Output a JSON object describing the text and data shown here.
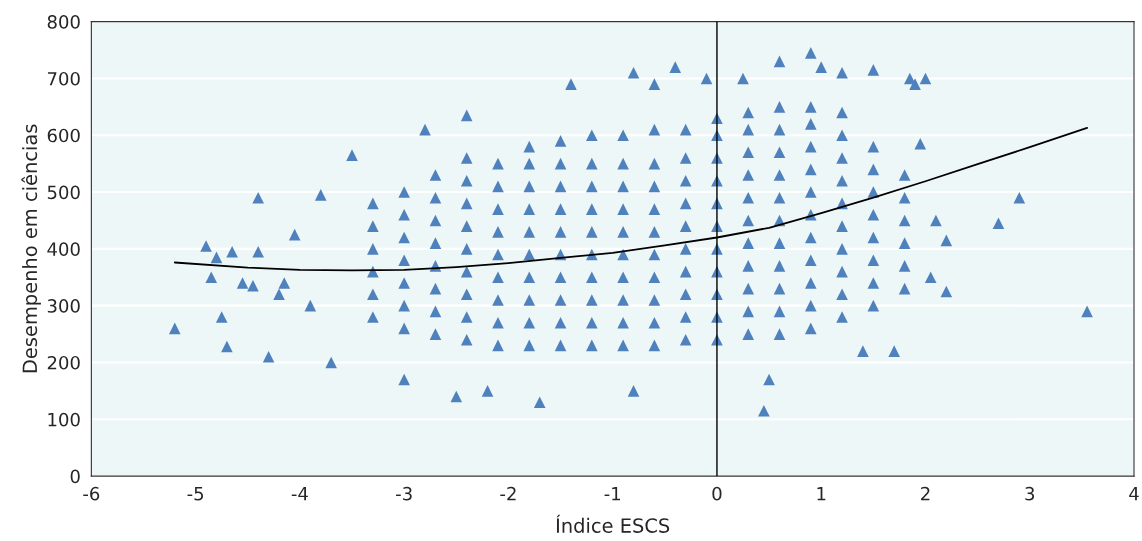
{
  "chart_data": {
    "type": "scatter",
    "xlabel": "Índice ESCS",
    "ylabel": "Desempenho em ciências",
    "xlim": [
      -6,
      4
    ],
    "xticks": [
      -6,
      -5,
      -4,
      -3,
      -2,
      -1,
      0,
      1,
      2,
      3,
      4
    ],
    "ylim": [
      0,
      800
    ],
    "yticks": [
      0,
      100,
      200,
      300,
      400,
      500,
      600,
      700,
      800
    ],
    "grid": "y",
    "marker": "triangle",
    "ref_lines": [
      {
        "axis": "x",
        "value": 0,
        "color": "#000000",
        "line_style": "solid"
      }
    ],
    "series": [
      {
        "color": "#4f81bd",
        "x": [
          -3.3,
          -3.3,
          -3.3,
          -3.3,
          -3.3,
          -3.3,
          -3.0,
          -3.0,
          -3.0,
          -3.0,
          -3.0,
          -3.0,
          -3.0,
          -2.7,
          -2.7,
          -2.7,
          -2.7,
          -2.7,
          -2.7,
          -2.7,
          -2.7,
          -2.4,
          -2.4,
          -2.4,
          -2.4,
          -2.4,
          -2.4,
          -2.4,
          -2.4,
          -2.4,
          -2.1,
          -2.1,
          -2.1,
          -2.1,
          -2.1,
          -2.1,
          -2.1,
          -2.1,
          -2.1,
          -1.8,
          -1.8,
          -1.8,
          -1.8,
          -1.8,
          -1.8,
          -1.8,
          -1.8,
          -1.8,
          -1.8,
          -1.5,
          -1.5,
          -1.5,
          -1.5,
          -1.5,
          -1.5,
          -1.5,
          -1.5,
          -1.5,
          -1.5,
          -1.2,
          -1.2,
          -1.2,
          -1.2,
          -1.2,
          -1.2,
          -1.2,
          -1.2,
          -1.2,
          -1.2,
          -0.9,
          -0.9,
          -0.9,
          -0.9,
          -0.9,
          -0.9,
          -0.9,
          -0.9,
          -0.9,
          -0.9,
          -0.6,
          -0.6,
          -0.6,
          -0.6,
          -0.6,
          -0.6,
          -0.6,
          -0.6,
          -0.6,
          -0.6,
          -0.3,
          -0.3,
          -0.3,
          -0.3,
          -0.3,
          -0.3,
          -0.3,
          -0.3,
          -0.3,
          -0.3,
          0.0,
          0.0,
          0.0,
          0.0,
          0.0,
          0.0,
          0.0,
          0.0,
          0.0,
          0.0,
          0.0,
          0.3,
          0.3,
          0.3,
          0.3,
          0.3,
          0.3,
          0.3,
          0.3,
          0.3,
          0.3,
          0.3,
          0.6,
          0.6,
          0.6,
          0.6,
          0.6,
          0.6,
          0.6,
          0.6,
          0.6,
          0.6,
          0.6,
          0.9,
          0.9,
          0.9,
          0.9,
          0.9,
          0.9,
          0.9,
          0.9,
          0.9,
          0.9,
          0.9,
          1.2,
          1.2,
          1.2,
          1.2,
          1.2,
          1.2,
          1.2,
          1.2,
          1.2,
          1.2,
          1.5,
          1.5,
          1.5,
          1.5,
          1.5,
          1.5,
          1.5,
          1.5,
          1.8,
          1.8,
          1.8,
          1.8,
          1.8,
          1.8,
          -5.2,
          -4.9,
          -4.85,
          -4.8,
          -4.75,
          -4.7,
          -4.65,
          -4.55,
          -4.45,
          -4.4,
          -4.4,
          -4.3,
          -4.2,
          -4.15,
          -4.05,
          -3.9,
          -3.8,
          -3.7,
          -3.5,
          -2.8,
          -2.4,
          -2.5,
          -1.7,
          -1.4,
          -0.8,
          -0.6,
          -0.8,
          -0.4,
          -0.1,
          0.25,
          0.45,
          0.6,
          0.9,
          1.0,
          1.2,
          1.5,
          1.85,
          1.9,
          2.0,
          1.4,
          1.7,
          2.05,
          2.2,
          2.2,
          2.1,
          2.7,
          2.9,
          3.55,
          1.95,
          0.5,
          -3.0,
          -2.2
        ],
        "values": [
          280,
          320,
          360,
          400,
          440,
          480,
          260,
          300,
          340,
          380,
          420,
          460,
          500,
          250,
          290,
          330,
          370,
          410,
          450,
          490,
          530,
          240,
          280,
          320,
          360,
          400,
          440,
          480,
          520,
          560,
          230,
          270,
          310,
          350,
          390,
          430,
          470,
          510,
          550,
          230,
          270,
          310,
          350,
          390,
          430,
          470,
          510,
          550,
          580,
          230,
          270,
          310,
          350,
          390,
          430,
          470,
          510,
          550,
          590,
          230,
          270,
          310,
          350,
          390,
          430,
          470,
          510,
          550,
          600,
          230,
          270,
          310,
          350,
          390,
          430,
          470,
          510,
          550,
          600,
          230,
          270,
          310,
          350,
          390,
          430,
          470,
          510,
          550,
          610,
          240,
          280,
          320,
          360,
          400,
          440,
          480,
          520,
          560,
          610,
          240,
          280,
          320,
          360,
          400,
          440,
          480,
          520,
          560,
          600,
          630,
          250,
          290,
          330,
          370,
          410,
          450,
          490,
          530,
          570,
          610,
          640,
          250,
          290,
          330,
          370,
          410,
          450,
          490,
          530,
          570,
          610,
          650,
          260,
          300,
          340,
          380,
          420,
          460,
          500,
          540,
          580,
          620,
          650,
          280,
          320,
          360,
          400,
          440,
          480,
          520,
          560,
          600,
          640,
          300,
          340,
          380,
          420,
          460,
          500,
          540,
          580,
          330,
          370,
          410,
          450,
          490,
          530,
          260,
          405,
          350,
          385,
          280,
          228,
          395,
          340,
          335,
          490,
          395,
          210,
          320,
          340,
          425,
          300,
          495,
          200,
          565,
          610,
          635,
          140,
          130,
          690,
          710,
          690,
          150,
          720,
          700,
          700,
          115,
          730,
          745,
          720,
          710,
          715,
          700,
          690,
          700,
          220,
          220,
          350,
          415,
          325,
          450,
          445,
          490,
          290,
          585,
          170,
          170,
          150
        ]
      },
      {
        "type": "line",
        "color": "#000000",
        "marker": "none",
        "x": [
          -5.2,
          -4.5,
          -4,
          -3.5,
          -3,
          -2.5,
          -2,
          -1.5,
          -1,
          -0.5,
          0,
          0.5,
          1,
          1.5,
          2,
          2.5,
          3,
          3.55
        ],
        "values": [
          376,
          367,
          363,
          362,
          363,
          368,
          375,
          384,
          393,
          406,
          420,
          437,
          463,
          490,
          519,
          549,
          579,
          613
        ]
      }
    ]
  }
}
